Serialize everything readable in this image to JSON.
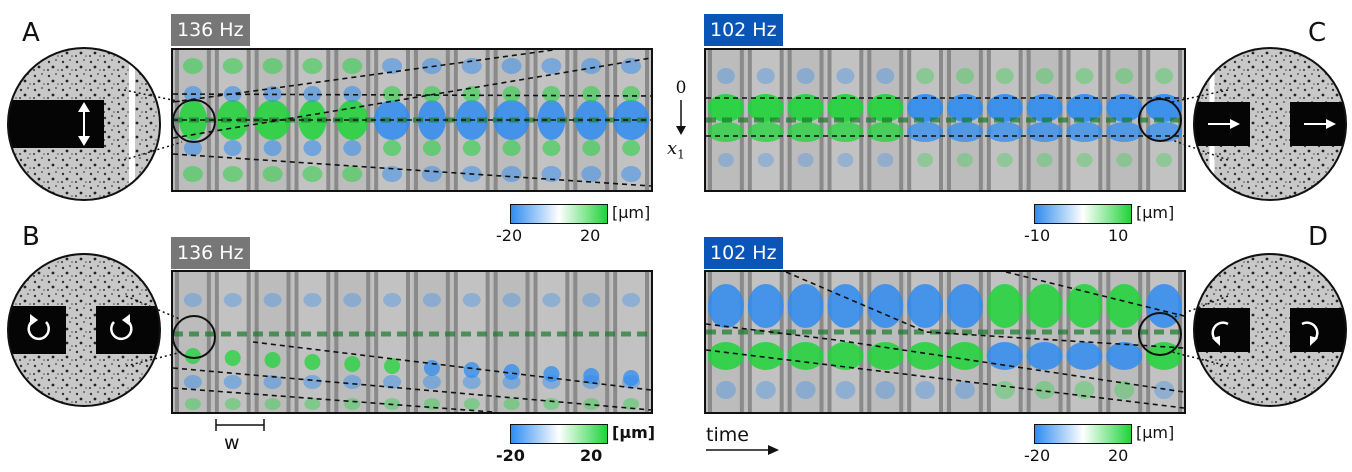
{
  "panels": {
    "A": {
      "letter": "A",
      "freq": "136 Hz",
      "tag_color": "#777777",
      "colorbar": {
        "min": "-20",
        "max": "20",
        "unit": "[µm]"
      }
    },
    "B": {
      "letter": "B",
      "freq": "136 Hz",
      "tag_color": "#777777",
      "colorbar": {
        "min": "-20",
        "max": "20",
        "unit": "[µm]",
        "bold": true
      }
    },
    "C": {
      "letter": "C",
      "freq": "102 Hz",
      "tag_color": "#0a55b8",
      "colorbar": {
        "min": "-10",
        "max": "10",
        "unit": "[µm]"
      }
    },
    "D": {
      "letter": "D",
      "freq": "102 Hz",
      "tag_color": "#0a55b8",
      "colorbar": {
        "min": "-20",
        "max": "20",
        "unit": "[µm]"
      }
    }
  },
  "axis": {
    "zero": "0",
    "x1": "x",
    "x1_sub": "1"
  },
  "width_label": "w",
  "time_label": "time",
  "colors": {
    "negative": "#2f8cf0",
    "positive": "#1fd33a",
    "frame": "#111111"
  }
}
